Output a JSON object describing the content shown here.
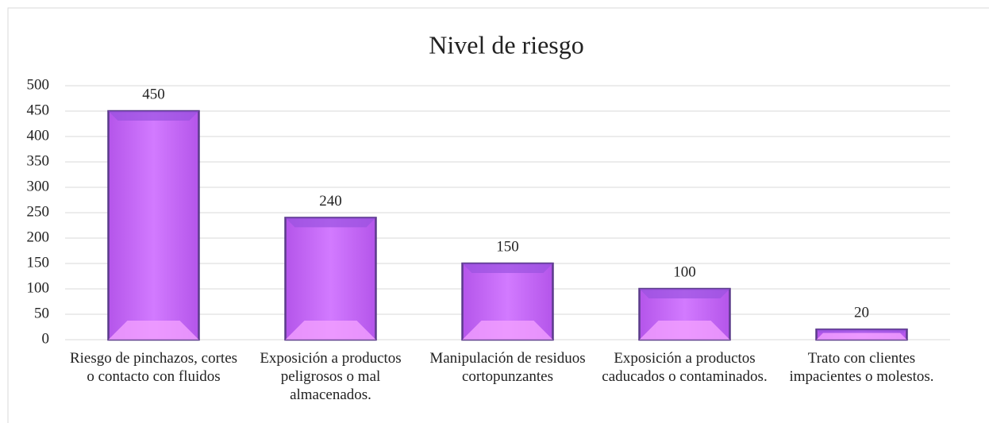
{
  "chart_data": {
    "type": "bar",
    "title": "Nivel de riesgo",
    "categories": [
      "Riesgo de pinchazos, cortes o contacto con fluidos",
      "Exposición a productos peligrosos o mal almacenados.",
      "Manipulación de residuos cortopunzantes",
      "Exposición a productos caducados o contaminados.",
      "Trato con clientes impacientes o molestos."
    ],
    "values": [
      450,
      240,
      150,
      100,
      20
    ],
    "color": "#cc66ff",
    "ylim": [
      0,
      500
    ],
    "yticks": [
      0,
      50,
      100,
      150,
      200,
      250,
      300,
      350,
      400,
      450,
      500
    ],
    "grid": true
  }
}
